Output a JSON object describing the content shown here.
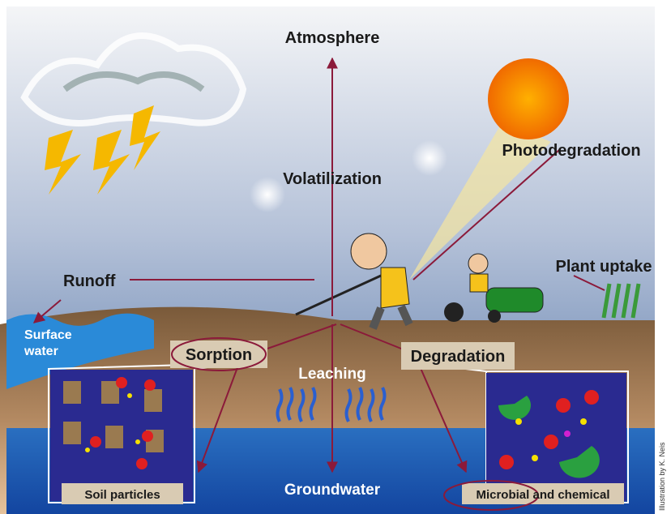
{
  "labels": {
    "atmosphere": "Atmosphere",
    "volatilization": "Volatilization",
    "photodegradation": "Photodegradation",
    "runoff": "Runoff",
    "plant_uptake": "Plant uptake",
    "surface_water": [
      "Surface",
      "water"
    ],
    "sorption": "Sorption",
    "leaching": "Leaching",
    "degradation": "Degradation",
    "groundwater": "Groundwater",
    "soil_particles": "Soil particles",
    "microbial_and_chemical": "Microbial and chemical"
  },
  "credit": "Illustration by K. Neis"
}
